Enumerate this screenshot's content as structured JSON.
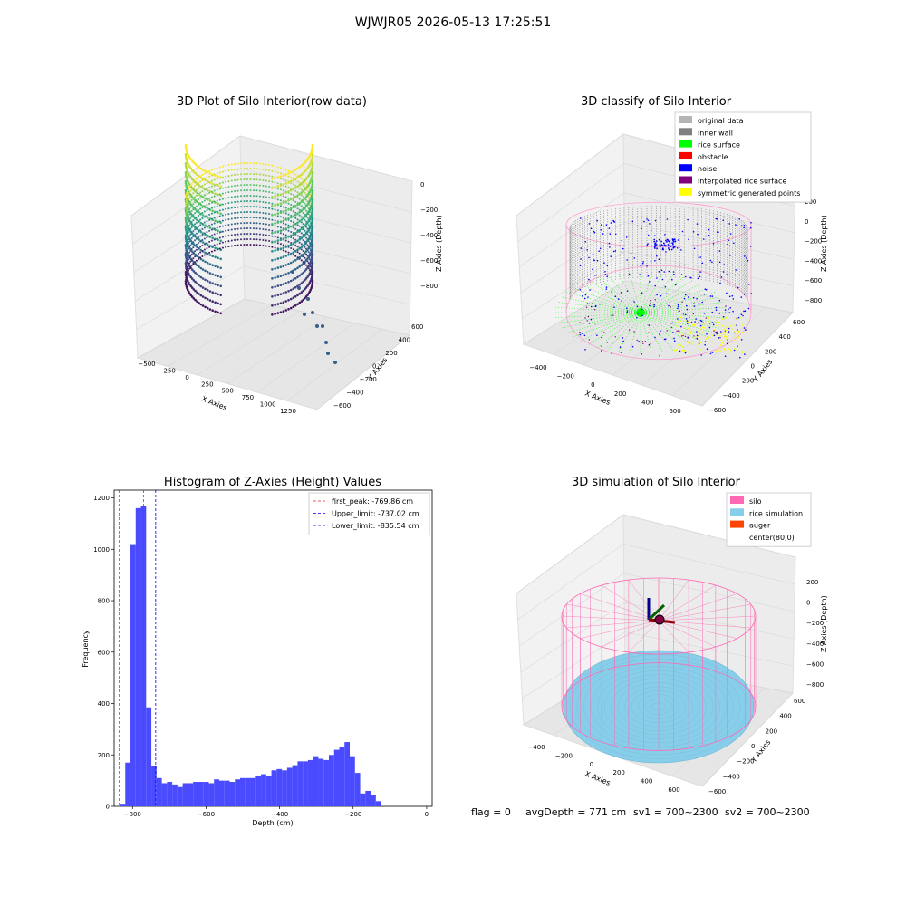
{
  "figure": {
    "title": "WJWJR05 2026-05-13 17:25:51"
  },
  "chart_data": [
    {
      "type": "scatter",
      "projection": "3d",
      "title": "3D Plot of Silo Interior(row data)",
      "xlabel": "X Axies",
      "ylabel": "Y Axies",
      "zlabel": "Z Axies (Depth)",
      "x_ticks": [
        "−500",
        "−250",
        "0",
        "250",
        "500",
        "750",
        "1000",
        "1250"
      ],
      "y_ticks": [
        "−600",
        "−400",
        "−200",
        "0",
        "200",
        "400",
        "600"
      ],
      "z_ticks": [
        "0",
        "−200",
        "−400",
        "−600",
        "−800"
      ],
      "colormap": "viridis",
      "grid": true
    },
    {
      "type": "scatter",
      "projection": "3d",
      "title": "3D classify of Silo Interior",
      "xlabel": "X Axies",
      "ylabel": "Y Axies",
      "zlabel": "Z Axies (Depth)",
      "x_ticks": [
        "−400",
        "−200",
        "0",
        "200",
        "400",
        "600"
      ],
      "y_ticks": [
        "−600",
        "−400",
        "−200",
        "0",
        "200",
        "400",
        "600"
      ],
      "z_ticks": [
        "200",
        "0",
        "−200",
        "−400",
        "−600",
        "−800"
      ],
      "legend_position": "top-right",
      "legend": [
        {
          "label": "original data",
          "color": "#b4b4b4"
        },
        {
          "label": "inner wall",
          "color": "#808080"
        },
        {
          "label": "rice surface",
          "color": "#00ff00"
        },
        {
          "label": "obstacle",
          "color": "#ff0000"
        },
        {
          "label": "noise",
          "color": "#0000ff"
        },
        {
          "label": "interpolated rice surface",
          "color": "#800080"
        },
        {
          "label": "symmetric generated points",
          "color": "#ffff00"
        }
      ],
      "grid": true
    },
    {
      "type": "bar",
      "title": "Histogram of Z-Axies (Height) Values",
      "xlabel": "Depth (cm)",
      "ylabel": "Frequency",
      "xlim": [
        -850,
        15
      ],
      "ylim": [
        0,
        1230
      ],
      "x_ticks": [
        -800,
        -600,
        -400,
        -200,
        0
      ],
      "x_tick_labels": [
        "−800",
        "−600",
        "−400",
        "−200",
        "0"
      ],
      "y_ticks": [
        0,
        200,
        400,
        600,
        800,
        1000,
        1200
      ],
      "bar_color": "#4a4aff",
      "bin_start": -834,
      "bin_width": 14.2,
      "values": [
        10,
        170,
        1020,
        1160,
        1170,
        385,
        155,
        110,
        90,
        95,
        85,
        75,
        90,
        90,
        95,
        95,
        95,
        90,
        105,
        100,
        100,
        95,
        105,
        110,
        110,
        110,
        120,
        125,
        120,
        140,
        145,
        140,
        150,
        160,
        175,
        175,
        180,
        195,
        185,
        180,
        200,
        220,
        230,
        250,
        195,
        130,
        50,
        60,
        45,
        20
      ],
      "lines": [
        {
          "label": "first_peak: -769.86 cm",
          "x": -769.86,
          "color": "#d62728",
          "style": "dashed"
        },
        {
          "label": "Upper_limit: -737.02 cm",
          "x": -737.02,
          "color": "#0000ff",
          "style": "dashed"
        },
        {
          "label": "Lower_limit: -835.54 cm",
          "x": -835.54,
          "color": "#0000ff",
          "style": "dashed"
        }
      ],
      "legend_position": "top-right",
      "grid": false
    },
    {
      "type": "surface",
      "projection": "3d",
      "title": "3D simulation of Silo Interior",
      "xlabel": "X Axies",
      "ylabel": "Y Axies",
      "zlabel": "Z Axies (Depth)",
      "x_ticks": [
        "−400",
        "−200",
        "0",
        "200",
        "400",
        "600"
      ],
      "y_ticks": [
        "−600",
        "−400",
        "−200",
        "0",
        "200",
        "400",
        "600"
      ],
      "z_ticks": [
        "200",
        "0",
        "−200",
        "−400",
        "−600",
        "−800"
      ],
      "legend_position": "top-right",
      "legend": [
        {
          "label": "silo",
          "color": "#ff69b4"
        },
        {
          "label": "rice simulation",
          "color": "#87ceeb"
        },
        {
          "label": "auger",
          "color": "#ff4500"
        },
        {
          "label": "center(80,0)",
          "color": "#ffffff"
        }
      ],
      "footer": {
        "flag": "flag = 0",
        "avg_depth": "avgDepth = 771 cm",
        "sv1": "sv1 = 700~2300",
        "sv2": "sv2 = 700~2300"
      },
      "grid": true
    }
  ]
}
